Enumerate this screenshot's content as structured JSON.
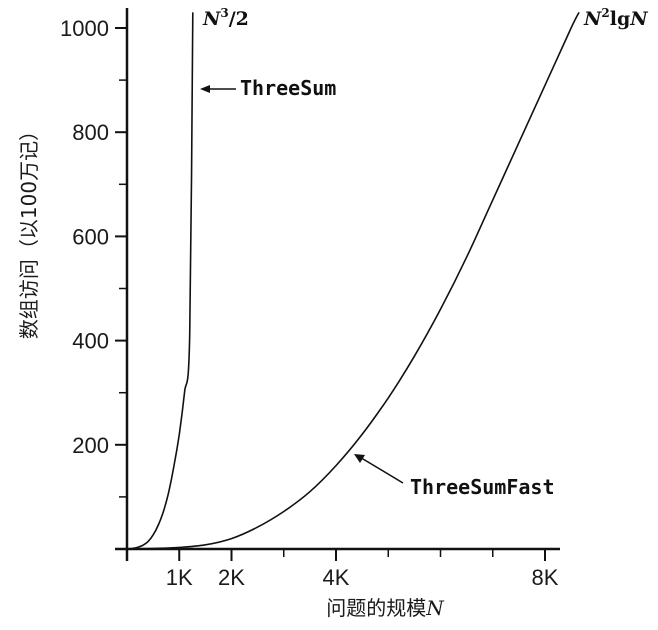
{
  "chart_data": {
    "type": "line",
    "xlabel": "问题的规模",
    "xlabel_italic": "N",
    "ylabel": "数组访问（以100万记）",
    "xlim": [
      0,
      8400
    ],
    "ylim": [
      0,
      1030
    ],
    "x_ticks": [
      {
        "value": 1000,
        "label": "1K"
      },
      {
        "value": 2000,
        "label": "2K"
      },
      {
        "value": 4000,
        "label": "4K"
      },
      {
        "value": 8000,
        "label": "8K"
      }
    ],
    "x_minor_ticks": [
      3000,
      5000,
      6000,
      7000
    ],
    "y_ticks": [
      {
        "value": 200,
        "label": "200"
      },
      {
        "value": 400,
        "label": "400"
      },
      {
        "value": 600,
        "label": "600"
      },
      {
        "value": 800,
        "label": "800"
      },
      {
        "value": 1000,
        "label": "1000"
      }
    ],
    "y_minor_ticks": [
      100,
      300,
      500,
      700,
      900
    ],
    "series": [
      {
        "name": "ThreeSum",
        "formula": "N³/2",
        "x": [
          0,
          100,
          200,
          300,
          400,
          500,
          600,
          700,
          800,
          900,
          1000,
          1100,
          1200,
          1260
        ],
        "y": [
          0,
          1,
          3,
          7,
          14,
          27,
          46,
          73,
          110,
          160,
          220,
          300,
          410,
          1030
        ]
      },
      {
        "name": "ThreeSumFast",
        "formula": "N²lgN",
        "x": [
          0,
          500,
          1000,
          1500,
          2000,
          2500,
          3000,
          3500,
          4000,
          4500,
          5000,
          5500,
          6000,
          6500,
          7000,
          7500,
          8000,
          8500,
          8650
        ],
        "y": [
          0,
          1,
          3,
          8,
          20,
          42,
          72,
          110,
          160,
          220,
          290,
          370,
          460,
          560,
          670,
          780,
          890,
          1000,
          1030
        ]
      }
    ]
  },
  "labels": {
    "threesum_formula_n": "N",
    "threesum_formula_exp": "3",
    "threesum_formula_rest": "/2",
    "threesum_name": "ThreeSum",
    "threesumfast_formula_n": "N",
    "threesumfast_formula_exp": "2",
    "threesumfast_formula_lg": "lg",
    "threesumfast_formula_n2": "N",
    "threesumfast_name": "ThreeSumFast"
  }
}
